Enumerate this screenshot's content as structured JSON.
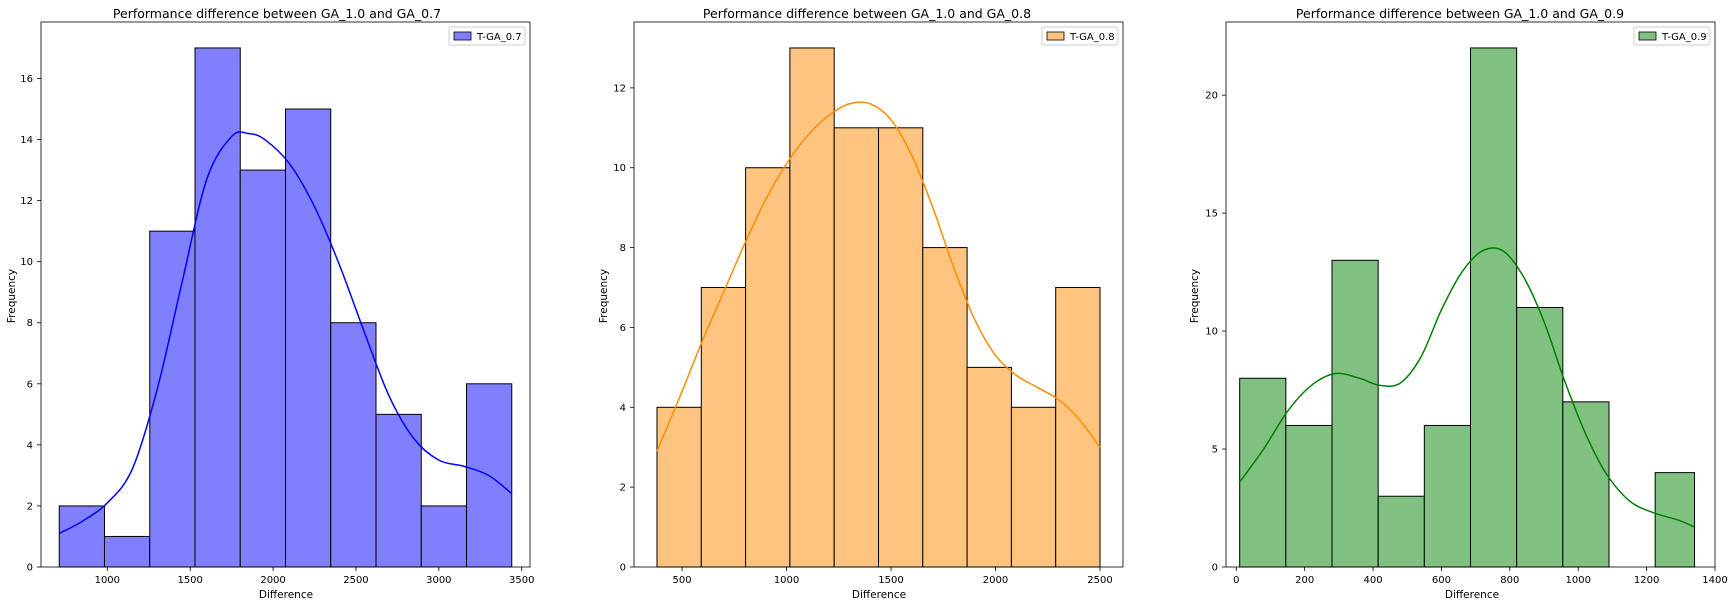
{
  "chart_data": [
    {
      "type": "bar",
      "title": "Performance difference between GA_1.0 and GA_0.7",
      "xlabel": "Difference",
      "ylabel": "Frequency",
      "legend": {
        "label": "T-GA_0.7",
        "position": "top-right"
      },
      "color": "#0000ff",
      "bar_color": "#8080ff",
      "xlim": [
        600,
        3550
      ],
      "ylim": [
        0,
        17.85
      ],
      "xticks": [
        1000,
        1500,
        2000,
        2500,
        3000,
        3500
      ],
      "yticks": [
        0,
        2,
        4,
        6,
        8,
        10,
        12,
        14,
        16
      ],
      "bin_edges": [
        710,
        983,
        1256,
        1529,
        1802,
        2075,
        2348,
        2621,
        2894,
        3167,
        3440
      ],
      "values": [
        2,
        1,
        11,
        17,
        13,
        15,
        8,
        5,
        2,
        6
      ],
      "kde": {
        "x": [
          710,
          850,
          1000,
          1150,
          1300,
          1450,
          1600,
          1750,
          1850,
          1950,
          2100,
          2250,
          2400,
          2550,
          2700,
          2850,
          3000,
          3150,
          3300,
          3440
        ],
        "y": [
          1.1,
          1.5,
          2.1,
          3.2,
          5.8,
          9.3,
          12.7,
          14.1,
          14.2,
          14.0,
          13.2,
          11.8,
          9.9,
          7.7,
          5.6,
          4.2,
          3.5,
          3.3,
          3.0,
          2.4
        ]
      }
    },
    {
      "type": "bar",
      "title": "Performance difference between GA_1.0 and GA_0.8",
      "xlabel": "Difference",
      "ylabel": "Frequency",
      "legend": {
        "label": "T-GA_0.8",
        "position": "top-right"
      },
      "color": "#ff8c00",
      "bar_color": "#ffc580",
      "xlim": [
        270,
        2610
      ],
      "ylim": [
        0,
        13.65
      ],
      "xticks": [
        500,
        1000,
        1500,
        2000,
        2500
      ],
      "yticks": [
        0,
        2,
        4,
        6,
        8,
        10,
        12
      ],
      "bin_edges": [
        380,
        592,
        804,
        1016,
        1228,
        1440,
        1652,
        1864,
        2076,
        2288,
        2500
      ],
      "values": [
        4,
        7,
        10,
        13,
        11,
        11,
        8,
        5,
        4,
        7
      ],
      "kde": {
        "x": [
          380,
          500,
          600,
          700,
          800,
          900,
          1000,
          1100,
          1200,
          1300,
          1400,
          1500,
          1600,
          1700,
          1800,
          1900,
          2000,
          2100,
          2200,
          2300,
          2400,
          2500
        ],
        "y": [
          2.9,
          4.4,
          5.7,
          6.9,
          8.1,
          9.2,
          10.1,
          10.8,
          11.3,
          11.6,
          11.6,
          11.2,
          10.3,
          9.0,
          7.5,
          6.2,
          5.3,
          4.8,
          4.5,
          4.2,
          3.7,
          3.0
        ]
      }
    },
    {
      "type": "bar",
      "title": "Performance difference between GA_1.0 and GA_0.9",
      "xlabel": "Difference",
      "ylabel": "Frequency",
      "legend": {
        "label": "T-GA_0.9",
        "position": "top-right"
      },
      "color": "#008000",
      "bar_color": "#80c080",
      "xlim": [
        -30,
        1400
      ],
      "ylim": [
        0,
        23.1
      ],
      "xticks": [
        0,
        200,
        400,
        600,
        800,
        1000,
        1200,
        1400
      ],
      "yticks": [
        0,
        5,
        10,
        15,
        20
      ],
      "bin_edges": [
        10,
        145,
        280,
        415,
        550,
        685,
        820,
        955,
        1090,
        1225,
        1340
      ],
      "values": [
        8,
        6,
        13,
        3,
        6,
        22,
        11,
        7,
        0,
        4
      ],
      "kde": {
        "x": [
          10,
          80,
          150,
          220,
          290,
          360,
          420,
          480,
          540,
          600,
          660,
          720,
          780,
          840,
          900,
          960,
          1020,
          1080,
          1150,
          1220,
          1290,
          1340
        ],
        "y": [
          3.6,
          5.0,
          6.6,
          7.7,
          8.2,
          8.0,
          7.7,
          7.8,
          8.9,
          10.9,
          12.5,
          13.4,
          13.4,
          12.3,
          10.4,
          7.9,
          5.7,
          4.0,
          2.8,
          2.3,
          2.0,
          1.7
        ]
      }
    }
  ]
}
